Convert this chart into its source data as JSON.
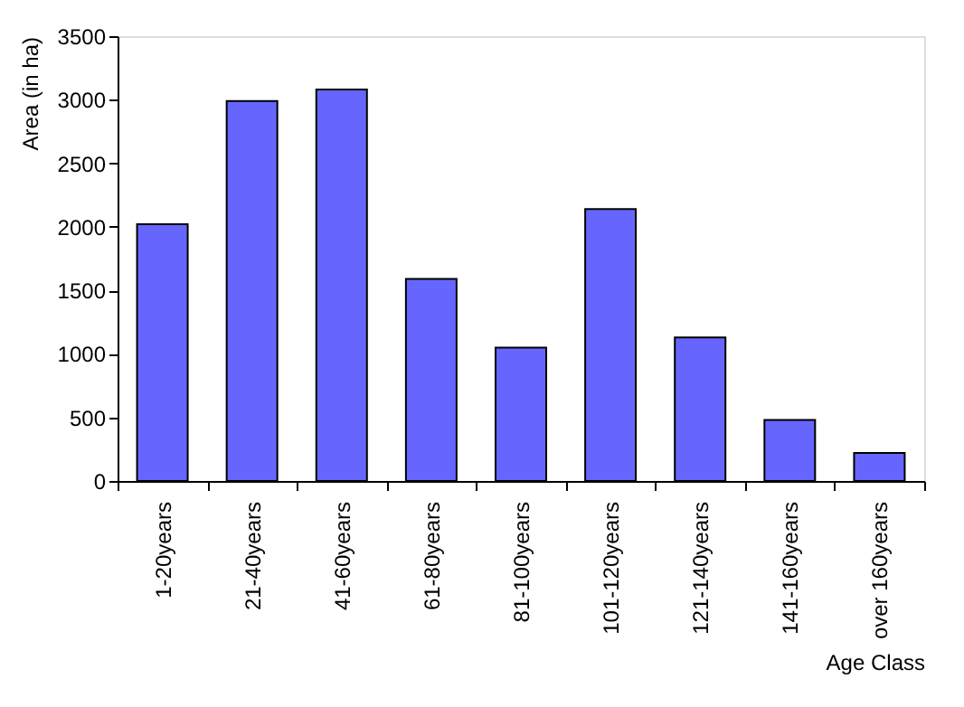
{
  "chart_data": {
    "type": "bar",
    "xlabel": "Age Class",
    "ylabel": "Area (in ha)",
    "categories": [
      "1-20years",
      "21-40years",
      "41-60years",
      "61-80years",
      "81-100years",
      "101-120years",
      "121-140years",
      "141-160years",
      "over 160years"
    ],
    "values": [
      2020,
      2990,
      3080,
      1590,
      1050,
      2140,
      1130,
      480,
      220
    ],
    "color": "#6666ff",
    "ylim": [
      0,
      3500
    ],
    "yticks": [
      0,
      500,
      1000,
      1500,
      2000,
      2500,
      3000,
      3500
    ],
    "grid": false
  }
}
